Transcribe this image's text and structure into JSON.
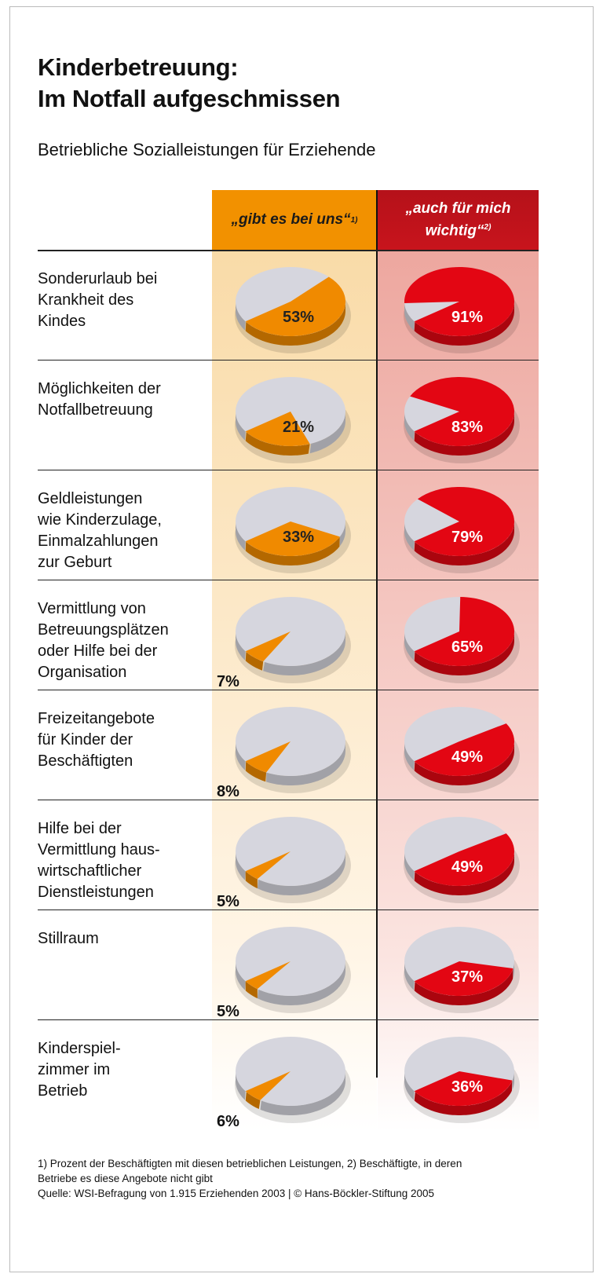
{
  "title_line1": "Kinderbetreuung:",
  "title_line2": "Im Notfall aufgeschmissen",
  "subtitle": "Betriebliche Sozialleistungen für Erziehende",
  "chart_data": {
    "type": "pie",
    "columns": [
      {
        "label": "„gibt es bei uns“",
        "footnote": "1)",
        "color": "#f08a00"
      },
      {
        "label_line1": "„auch für mich",
        "label_line2": "wichtig“",
        "footnote": "2)",
        "color": "#e30613"
      }
    ],
    "rest_color": "#d6d6de",
    "rows": [
      {
        "label": "Sonderurlaub bei\nKrankheit des\nKindes",
        "gibt_es": 53,
        "wichtig": 91
      },
      {
        "label": "Möglichkeiten der\nNotfallbetreuung",
        "gibt_es": 21,
        "wichtig": 83
      },
      {
        "label": "Geldleistungen\nwie Kinderzulage,\nEinmalzahlungen\nzur Geburt",
        "gibt_es": 33,
        "wichtig": 79
      },
      {
        "label": "Vermittlung von\nBetreuungsplätzen\noder Hilfe bei der\nOrganisation",
        "gibt_es": 7,
        "wichtig": 65
      },
      {
        "label": "Freizeitangebote\nfür Kinder der\nBeschäftigten",
        "gibt_es": 8,
        "wichtig": 49
      },
      {
        "label": "Hilfe bei der\nVermittlung haus-\nwirtschaftlicher\nDienstleistungen",
        "gibt_es": 5,
        "wichtig": 49
      },
      {
        "label": "Stillraum",
        "gibt_es": 5,
        "wichtig": 37
      },
      {
        "label": "Kinderspiel-\nzimmer im\nBetrieb",
        "gibt_es": 6,
        "wichtig": 36
      }
    ],
    "unit": "%"
  },
  "footnote_line1": "1) Prozent der Beschäftigten mit diesen betrieblichen Leistungen, 2) Beschäftigte, in deren",
  "footnote_line2": "Betriebe es diese Angebote nicht gibt",
  "source": "Quelle: WSI-Befragung von 1.915 Erziehenden 2003 | © Hans-Böckler-Stiftung 2005"
}
